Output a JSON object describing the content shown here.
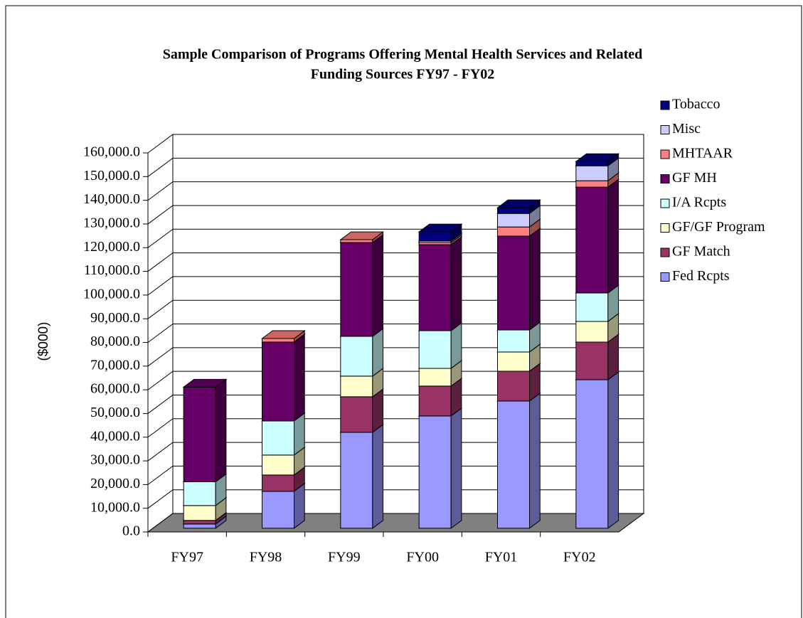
{
  "chart_data": {
    "type": "stacked-bar-3d",
    "title": [
      "Sample Comparison of Programs Offering Mental Health Services and Related",
      "Funding Sources FY97 - FY02"
    ],
    "y_label": "($000)",
    "categories": [
      "FY97",
      "FY98",
      "FY99",
      "FY00",
      "FY01",
      "FY02"
    ],
    "series": [
      {
        "name": "Fed Rcpts",
        "color": "#9999ff",
        "values": [
          1800,
          15600,
          40500,
          47400,
          53700,
          62700
        ]
      },
      {
        "name": "GF Match",
        "color": "#993366",
        "values": [
          1500,
          6900,
          15000,
          12600,
          12600,
          15900
        ]
      },
      {
        "name": "GF/GF Program",
        "color": "#ffffcc",
        "values": [
          6300,
          8400,
          8700,
          7500,
          8100,
          8700
        ]
      },
      {
        "name": "I/A Rcpts",
        "color": "#ccffff",
        "values": [
          10000,
          14400,
          16800,
          15900,
          9300,
          12000
        ]
      },
      {
        "name": "GF MH",
        "color": "#660066",
        "values": [
          40000,
          33300,
          39600,
          36300,
          39600,
          44700
        ]
      },
      {
        "name": "MHTAAR",
        "color": "#ff8080",
        "values": [
          0,
          1500,
          1200,
          900,
          3900,
          2700
        ]
      },
      {
        "name": "Misc",
        "color": "#ccccff",
        "values": [
          0,
          0,
          0,
          600,
          5700,
          6300
        ]
      },
      {
        "name": "Tobacco",
        "color": "#000080",
        "values": [
          0,
          0,
          0,
          3900,
          2400,
          1800
        ]
      }
    ],
    "ylim": [
      0,
      160000
    ],
    "yticks": [
      {
        "value": 0,
        "label": "0.0"
      },
      {
        "value": 10000,
        "label": "10,000.0"
      },
      {
        "value": 20000,
        "label": "20,000.0"
      },
      {
        "value": 30000,
        "label": "30,000.0"
      },
      {
        "value": 40000,
        "label": "40,000.0"
      },
      {
        "value": 50000,
        "label": "50,000.0"
      },
      {
        "value": 60000,
        "label": "60,000.0"
      },
      {
        "value": 70000,
        "label": "70,000.0"
      },
      {
        "value": 80000,
        "label": "80,000.0"
      },
      {
        "value": 90000,
        "label": "90,000.0"
      },
      {
        "value": 100000,
        "label": "100,000.0"
      },
      {
        "value": 110000,
        "label": "110,000.0"
      },
      {
        "value": 120000,
        "label": "120,000.0"
      },
      {
        "value": 130000,
        "label": "130,000.0"
      },
      {
        "value": 140000,
        "label": "140,000.0"
      },
      {
        "value": 150000,
        "label": "150,000.0"
      },
      {
        "value": 160000,
        "label": "160,000.0"
      }
    ],
    "grid": true
  }
}
